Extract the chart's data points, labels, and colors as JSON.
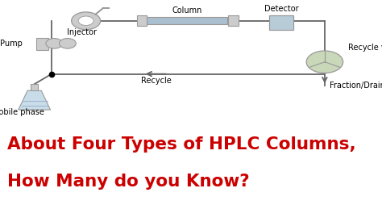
{
  "bg_color": "#ffffff",
  "title_line1": "About Four Types of HPLC Columns,",
  "title_line2": "How Many do you Know?",
  "title_color": "#cc0000",
  "title_fontsize": 15.5,
  "diagram_color": "#999999",
  "line_color": "#666666",
  "light_gray": "#cccccc",
  "light_blue": "#b8ccd8",
  "col_blue": "#aabfcf",
  "light_green": "#c8d8b8",
  "flask_blue": "#c8dde8",
  "component_labels": {
    "pump": "Pump",
    "injector": "Injector",
    "column": "Column",
    "detector": "Detector",
    "recycle_valve": "Recycle valve",
    "mobile_phase": "Mobile phase",
    "recycle": "Recycle",
    "fraction_drain": "Fraction/Drain"
  },
  "label_fontsize": 7
}
